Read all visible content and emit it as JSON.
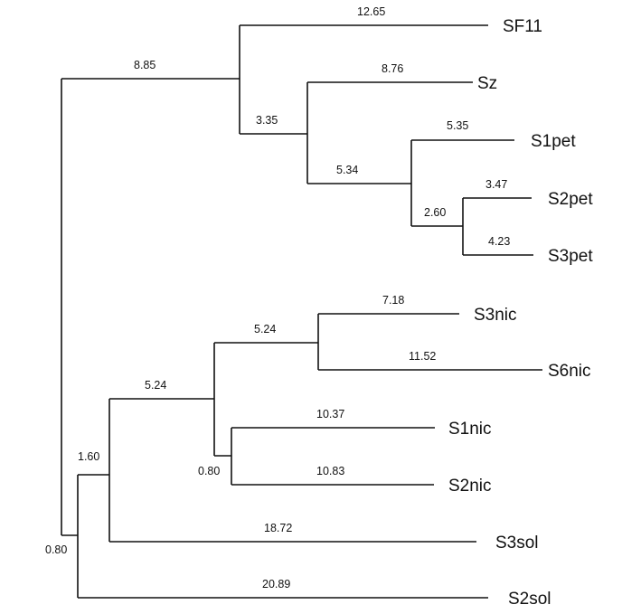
{
  "taxa": {
    "sf11": "SF11",
    "sz": "Sz",
    "s1pet": "S1pet",
    "s2pet": "S2pet",
    "s3pet": "S3pet",
    "s3nic": "S3nic",
    "s6nic": "S6nic",
    "s1nic": "S1nic",
    "s2nic": "S2nic",
    "s3sol": "S3sol",
    "s2sol": "S2sol"
  },
  "branch_lengths": {
    "sf11": "12.65",
    "top_clade": "8.85",
    "sz_s_clade": "3.35",
    "sz": "8.76",
    "pet_clade": "5.34",
    "s1pet": "5.35",
    "s23pet_clade": "2.60",
    "s2pet": "3.47",
    "s3pet": "4.23",
    "root": "0.80",
    "bottom_clade": "1.60",
    "nic_clade": "5.24",
    "s36nic_clade": "5.24",
    "s3nic": "7.18",
    "s6nic": "11.52",
    "s12nic_clade": "0.80",
    "s1nic": "10.37",
    "s2nic": "10.83",
    "s3sol": "18.72",
    "s2sol": "20.89"
  }
}
